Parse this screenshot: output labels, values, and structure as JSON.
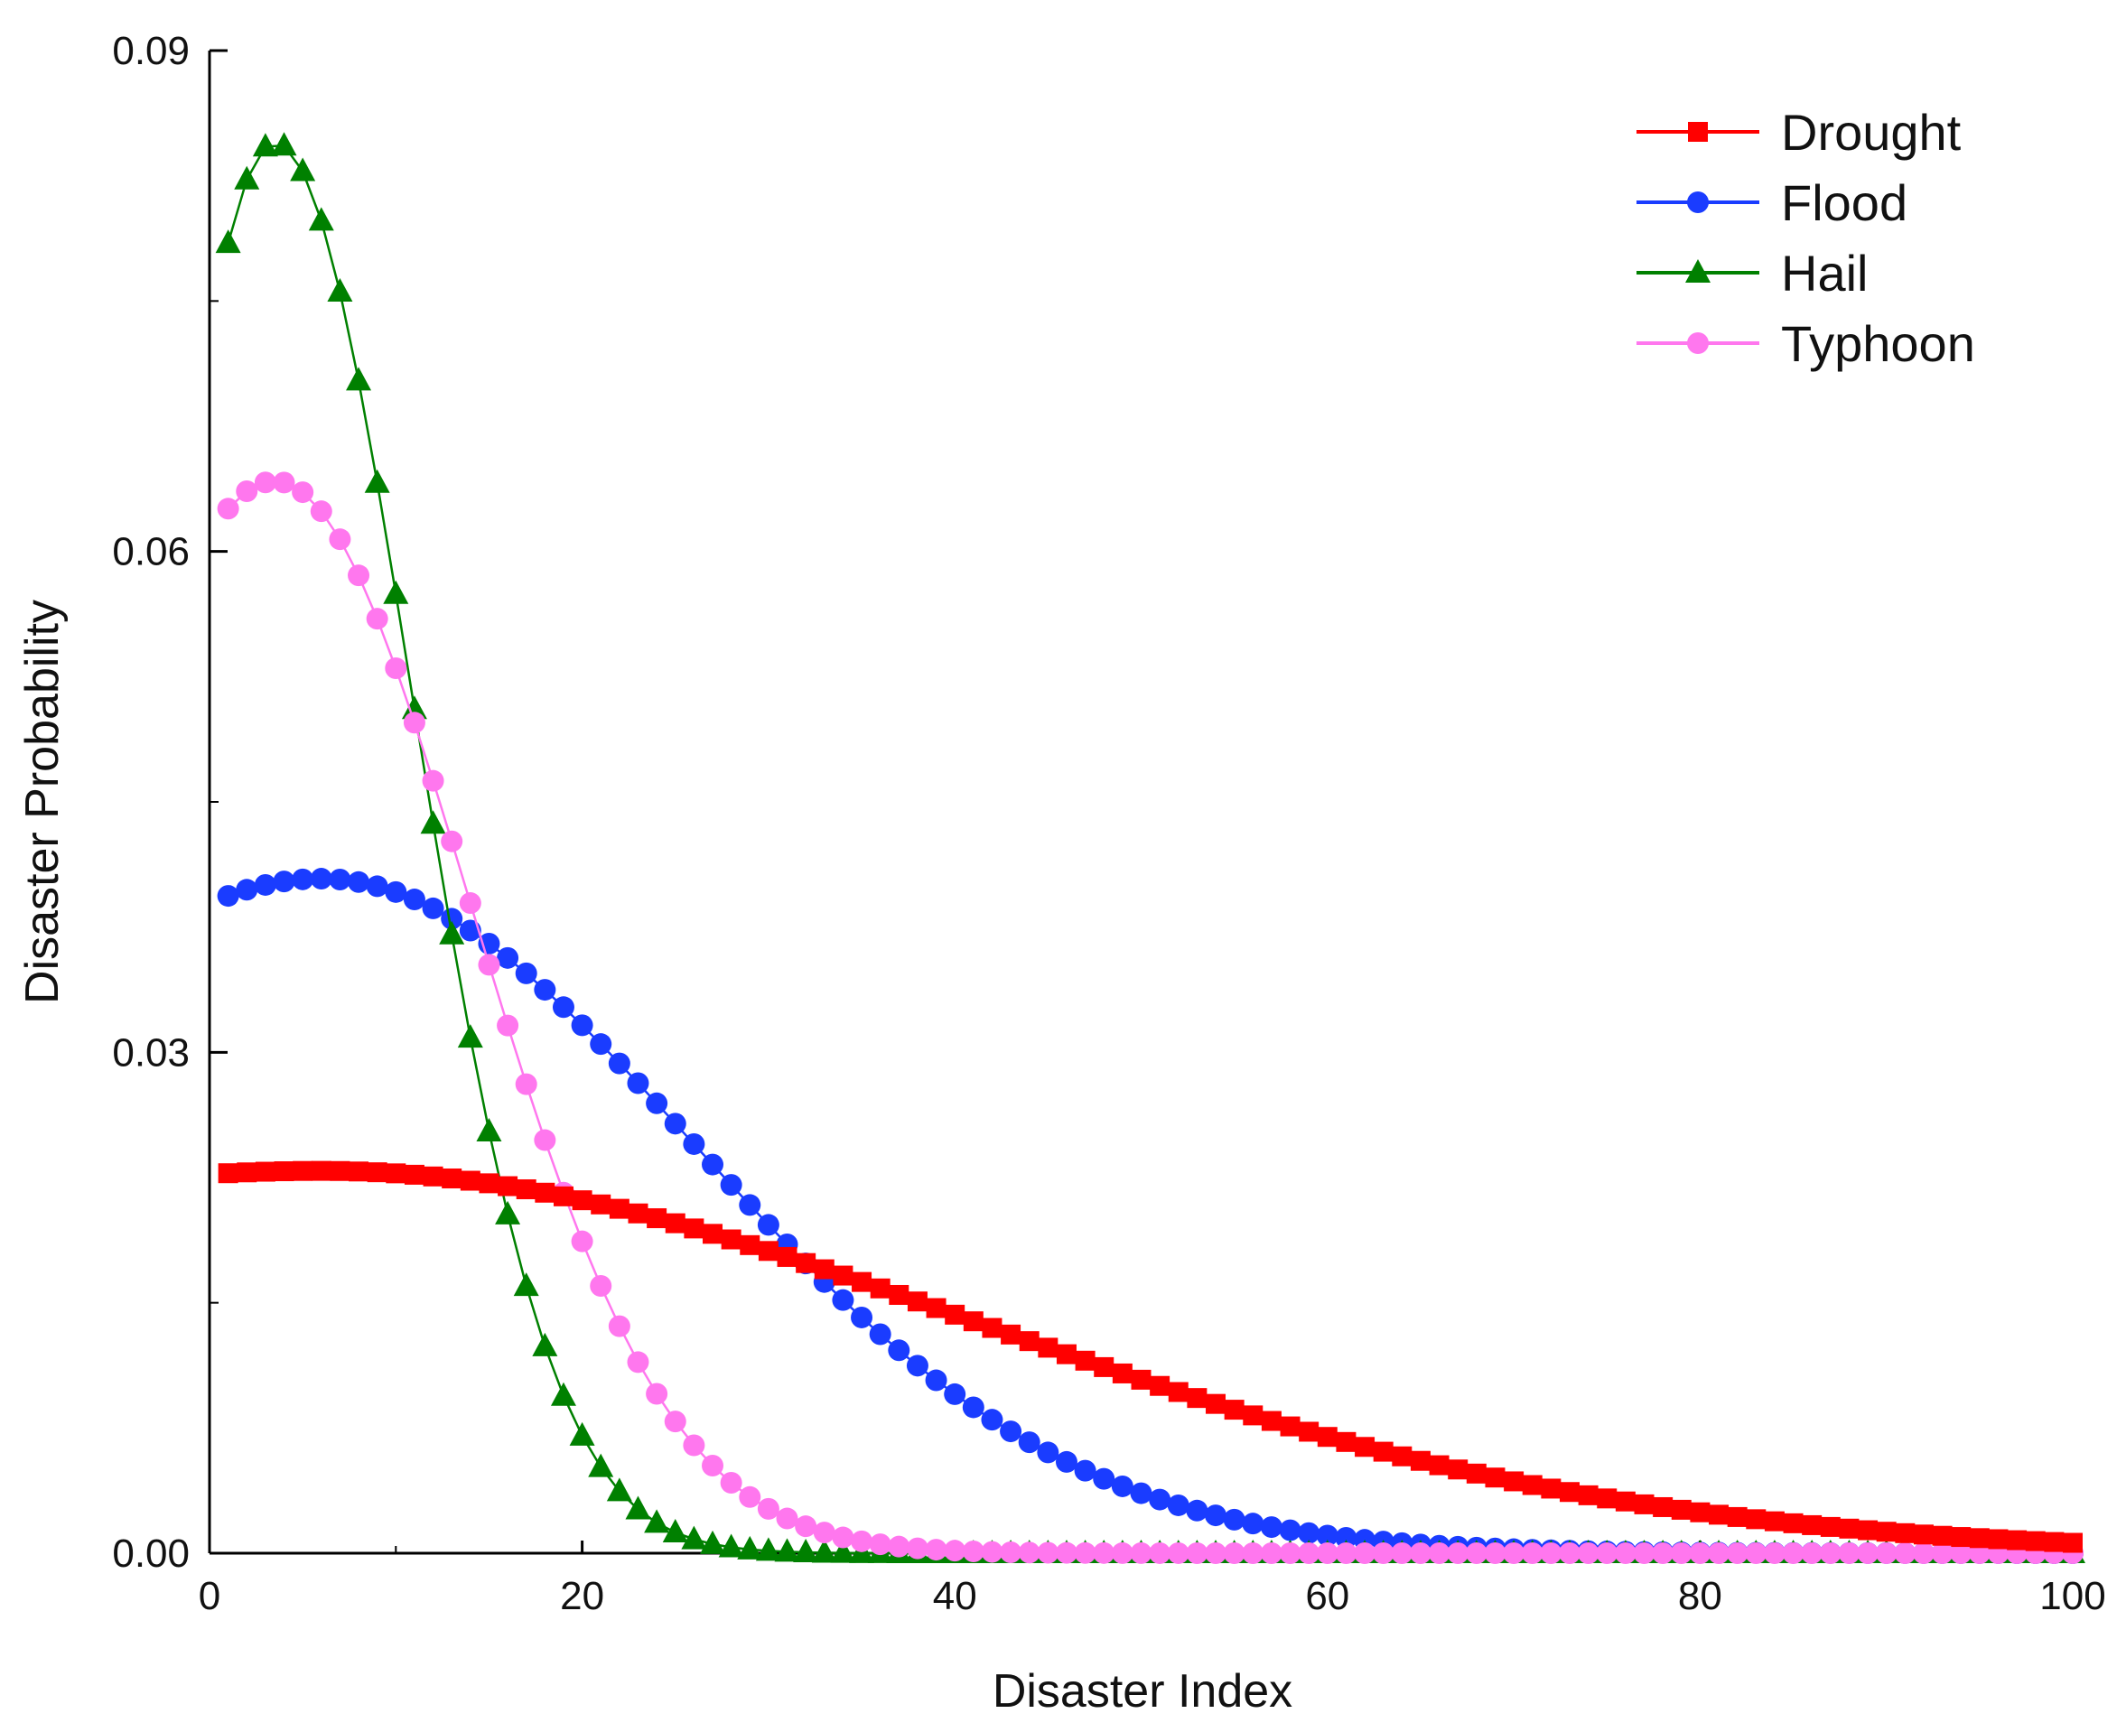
{
  "chart_data": {
    "type": "line",
    "title": "",
    "xlabel": "Disaster Index",
    "ylabel": "Disaster Probability",
    "xlim": [
      0,
      100
    ],
    "ylim": [
      0,
      0.09
    ],
    "xticks": [
      "0",
      "20",
      "40",
      "60",
      "80",
      "100"
    ],
    "yticks": [
      "0.00",
      "0.03",
      "0.06",
      "0.09"
    ],
    "grid": false,
    "legend_position": "top-right",
    "x_start": 1,
    "x_end": 100,
    "x_step": 1,
    "series": [
      {
        "name": "Drought",
        "color": "#ff0000",
        "marker": "square",
        "curve": {
          "peak": 0.0229,
          "mode": 6,
          "width_left": 45,
          "width_right": 35
        }
      },
      {
        "name": "Flood",
        "color": "#1a3cff",
        "marker": "circle",
        "curve": {
          "peak": 0.0404,
          "mode": 6,
          "width_left": 22,
          "width_right": 20
        }
      },
      {
        "name": "Hail",
        "color": "#008000",
        "marker": "triangle",
        "curve": {
          "peak": 0.0845,
          "mode": 3.5,
          "width_left": 6.5,
          "width_right": 7.4
        }
      },
      {
        "name": "Typhoon",
        "color": "#ff77ee",
        "marker": "circle",
        "curve": {
          "peak": 0.0642,
          "mode": 3.5,
          "width_left": 11,
          "width_right": 10.5
        }
      }
    ]
  }
}
